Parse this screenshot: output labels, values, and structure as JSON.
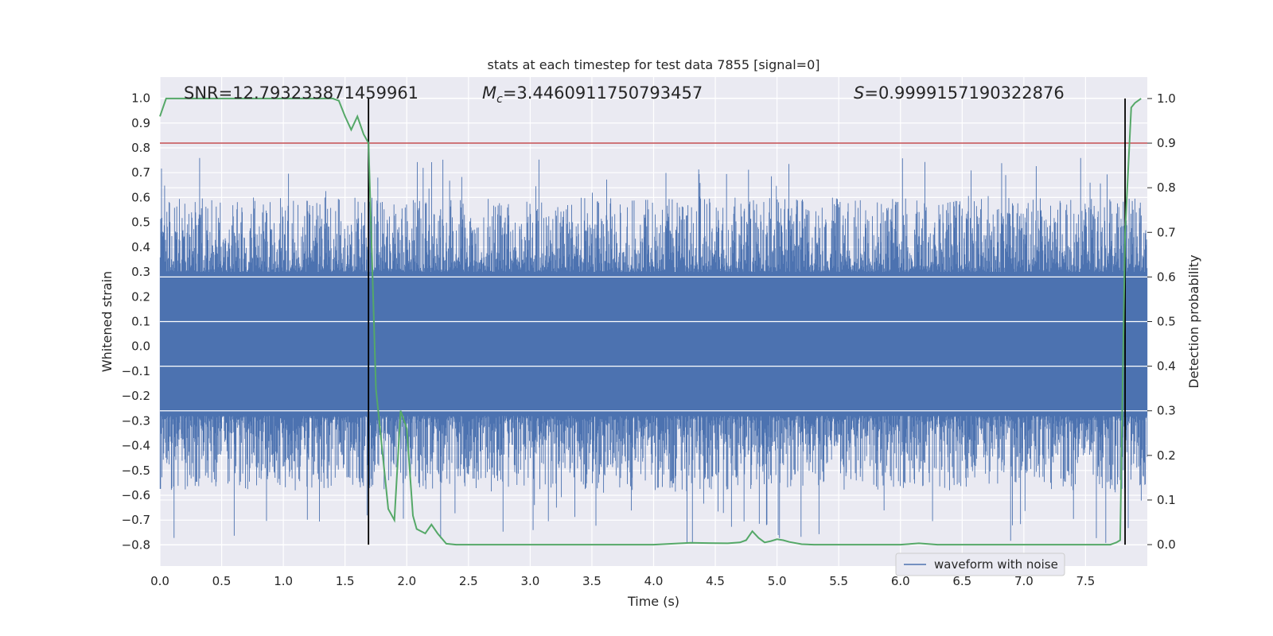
{
  "chart_data": {
    "type": "line",
    "title": "stats at each timestep for test data 7855 [signal=0]",
    "xlabel": "Time (s)",
    "ylabel": "Whitened strain",
    "y2label": "Detection probability",
    "xlim": [
      0.0,
      8.0
    ],
    "ylim": [
      -0.885,
      1.085
    ],
    "y2lim": [
      -0.048,
      1.048
    ],
    "xticks": [
      "0.0",
      "0.5",
      "1.0",
      "1.5",
      "2.0",
      "2.5",
      "3.0",
      "3.5",
      "4.0",
      "4.5",
      "5.0",
      "5.5",
      "6.0",
      "6.5",
      "7.0",
      "7.5"
    ],
    "xtick_values": [
      0.0,
      0.5,
      1.0,
      1.5,
      2.0,
      2.5,
      3.0,
      3.5,
      4.0,
      4.5,
      5.0,
      5.5,
      6.0,
      6.5,
      7.0,
      7.5
    ],
    "yticks": [
      "1.0",
      "0.9",
      "0.8",
      "0.7",
      "0.6",
      "0.5",
      "0.4",
      "0.3",
      "0.2",
      "0.1",
      "0.0",
      "−0.1",
      "−0.2",
      "−0.3",
      "−0.4",
      "−0.5",
      "−0.6",
      "−0.7",
      "−0.8"
    ],
    "ytick_values": [
      1.0,
      0.9,
      0.8,
      0.7,
      0.6,
      0.5,
      0.4,
      0.3,
      0.2,
      0.1,
      0.0,
      -0.1,
      -0.2,
      -0.3,
      -0.4,
      -0.5,
      -0.6,
      -0.7,
      -0.8
    ],
    "y2ticks": [
      "1.0",
      "0.9",
      "0.8",
      "0.7",
      "0.6",
      "0.5",
      "0.4",
      "0.3",
      "0.2",
      "0.1",
      "0.0"
    ],
    "y2tick_values": [
      1.0,
      0.9,
      0.8,
      0.7,
      0.6,
      0.5,
      0.4,
      0.3,
      0.2,
      0.1,
      0.0
    ],
    "grid": true,
    "annotations": {
      "snr": "SNR=12.793233871459961",
      "mc_symbol": "M",
      "mc_sub": "c",
      "mc_value": "=3.4460911750793457",
      "s_symbol": "S",
      "s_value": "=0.9999157190322876"
    },
    "legend": {
      "label": "waveform with noise",
      "placement": "lower-right"
    },
    "waveform": {
      "name": "waveform with noise",
      "color": "#4c72b0",
      "dense_band": [
        -0.27,
        0.29
      ],
      "spike_range": [
        -0.8,
        0.76
      ],
      "duration_s": 8.0
    },
    "detection_probability": {
      "color": "#55a868",
      "x": [
        0.0,
        0.05,
        0.1,
        1.4,
        1.45,
        1.5,
        1.55,
        1.6,
        1.65,
        1.69,
        1.75,
        1.85,
        1.9,
        1.95,
        2.0,
        2.05,
        2.08,
        2.15,
        2.2,
        2.25,
        2.32,
        2.4,
        2.6,
        3.0,
        3.5,
        4.0,
        4.3,
        4.6,
        4.7,
        4.75,
        4.8,
        4.85,
        4.9,
        4.95,
        5.0,
        5.05,
        5.1,
        5.2,
        5.3,
        5.5,
        6.0,
        6.15,
        6.3,
        6.5,
        7.0,
        7.5,
        7.7,
        7.75,
        7.78,
        7.82,
        7.87,
        7.9,
        7.95
      ],
      "y": [
        0.96,
        1.0,
        1.0,
        1.0,
        0.995,
        0.96,
        0.93,
        0.96,
        0.92,
        0.9,
        0.35,
        0.08,
        0.055,
        0.3,
        0.26,
        0.065,
        0.035,
        0.025,
        0.045,
        0.025,
        0.002,
        0.0,
        0.0,
        0.0,
        0.0,
        0.0,
        0.004,
        0.003,
        0.005,
        0.01,
        0.03,
        0.015,
        0.005,
        0.008,
        0.012,
        0.01,
        0.006,
        0.001,
        0.0,
        0.0,
        0.0,
        0.003,
        0.0,
        0.0,
        0.0,
        0.0,
        0.0,
        0.005,
        0.01,
        0.7,
        0.98,
        0.99,
        1.0
      ]
    },
    "threshold": {
      "value": 0.9,
      "axis": "right",
      "color": "#c44e52"
    },
    "vlines": {
      "x": [
        1.69,
        7.82
      ],
      "color": "#000000"
    }
  }
}
